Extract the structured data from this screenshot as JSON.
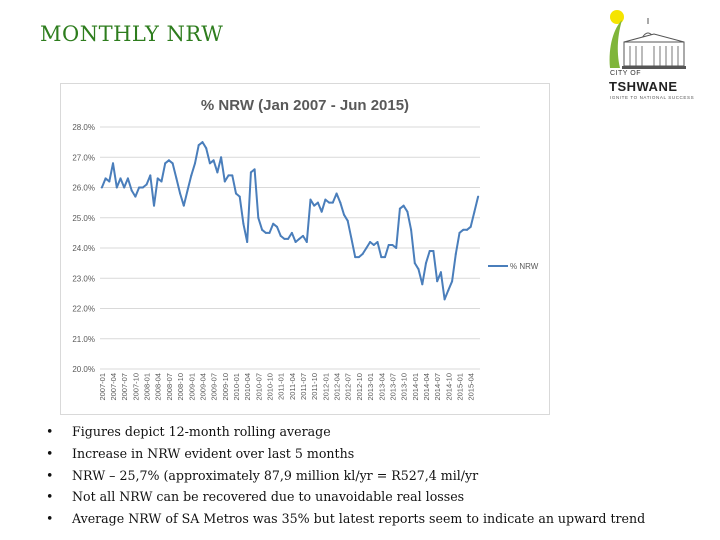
{
  "slide": {
    "title": "MONTHLY NRW"
  },
  "logo": {
    "city_of": "CITY OF",
    "name": "TSHWANE",
    "tagline": "IGNITE TO NATIONAL SUCCESS",
    "icon": "city-hall-icon"
  },
  "bullets": [
    "Figures depict 12-month rolling average",
    "Increase in NRW evident over last 5 months",
    "NRW – 25,7% (approximately 87,9 million kl/yr = R527,4 mil/yr",
    "Not all NRW can be recovered due to unavoidable real losses",
    "Average NRW of SA Metros was 35% but latest reports seem to indicate an upward trend"
  ],
  "chart_data": {
    "type": "line",
    "title": "% NRW (Jan 2007 - Jun 2015)",
    "xlabel": "",
    "ylabel": "",
    "ylim": [
      20,
      28
    ],
    "yticks": [
      "20.0%",
      "21.0%",
      "22.0%",
      "23.0%",
      "24.0%",
      "25.0%",
      "26.0%",
      "27.0%",
      "28.0%"
    ],
    "grid": true,
    "legend": "right",
    "colors": {
      "series": "#4a7ebb",
      "grid": "#d9d9d9",
      "axis_text": "#595959"
    },
    "x": [
      "2007-01",
      "2007-02",
      "2007-03",
      "2007-04",
      "2007-05",
      "2007-06",
      "2007-07",
      "2007-08",
      "2007-09",
      "2007-10",
      "2007-11",
      "2007-12",
      "2008-01",
      "2008-02",
      "2008-03",
      "2008-04",
      "2008-05",
      "2008-06",
      "2008-07",
      "2008-08",
      "2008-09",
      "2008-10",
      "2008-11",
      "2008-12",
      "2009-01",
      "2009-02",
      "2009-03",
      "2009-04",
      "2009-05",
      "2009-06",
      "2009-07",
      "2009-08",
      "2009-09",
      "2009-10",
      "2009-11",
      "2009-12",
      "2010-01",
      "2010-02",
      "2010-03",
      "2010-04",
      "2010-05",
      "2010-06",
      "2010-07",
      "2010-08",
      "2010-09",
      "2010-10",
      "2010-11",
      "2010-12",
      "2011-01",
      "2011-02",
      "2011-03",
      "2011-04",
      "2011-05",
      "2011-06",
      "2011-07",
      "2011-08",
      "2011-09",
      "2011-10",
      "2011-11",
      "2011-12",
      "2012-01",
      "2012-02",
      "2012-03",
      "2012-04",
      "2012-05",
      "2012-06",
      "2012-07",
      "2012-08",
      "2012-09",
      "2012-10",
      "2012-11",
      "2012-12",
      "2013-01",
      "2013-02",
      "2013-03",
      "2013-04",
      "2013-05",
      "2013-06",
      "2013-07",
      "2013-08",
      "2013-09",
      "2013-10",
      "2013-11",
      "2013-12",
      "2014-01",
      "2014-02",
      "2014-03",
      "2014-04",
      "2014-05",
      "2014-06",
      "2014-07",
      "2014-08",
      "2014-09",
      "2014-10",
      "2014-11",
      "2014-12",
      "2015-01",
      "2015-02",
      "2015-03",
      "2015-04",
      "2015-05",
      "2015-06"
    ],
    "tick_labels": [
      "2007-01",
      "2007-04",
      "2007-07",
      "2007-10",
      "2008-01",
      "2008-04",
      "2008-07",
      "2008-10",
      "2009-01",
      "2009-04",
      "2009-07",
      "2009-10",
      "2010-01",
      "2010-04",
      "2010-07",
      "2010-10",
      "2011-01",
      "2011-04",
      "2011-07",
      "2011-10",
      "2012-01",
      "2012-04",
      "2012-07",
      "2012-10",
      "2013-01",
      "2013-04",
      "2013-07",
      "2013-10",
      "2014-01",
      "2014-04",
      "2014-07",
      "2014-10",
      "2015-01",
      "2015-04"
    ],
    "series": [
      {
        "name": "% NRW",
        "values": [
          26.0,
          26.3,
          26.2,
          26.8,
          26.0,
          26.3,
          26.0,
          26.3,
          25.9,
          25.7,
          26.0,
          26.0,
          26.1,
          26.4,
          25.4,
          26.3,
          26.2,
          26.8,
          26.9,
          26.8,
          26.3,
          25.8,
          25.4,
          25.9,
          26.4,
          26.8,
          27.4,
          27.5,
          27.3,
          26.8,
          26.9,
          26.5,
          27.0,
          26.2,
          26.4,
          26.4,
          25.8,
          25.7,
          24.8,
          24.2,
          26.5,
          26.6,
          25.0,
          24.6,
          24.5,
          24.5,
          24.8,
          24.7,
          24.4,
          24.3,
          24.3,
          24.5,
          24.2,
          24.3,
          24.4,
          24.2,
          25.6,
          25.4,
          25.5,
          25.2,
          25.6,
          25.5,
          25.5,
          25.8,
          25.5,
          25.1,
          24.9,
          24.3,
          23.7,
          23.7,
          23.8,
          24.0,
          24.2,
          24.1,
          24.2,
          23.7,
          23.7,
          24.1,
          24.1,
          24.0,
          25.3,
          25.4,
          25.2,
          24.6,
          23.5,
          23.3,
          22.8,
          23.5,
          23.9,
          23.9,
          22.9,
          23.2,
          22.3,
          22.6,
          22.9,
          23.8,
          24.5,
          24.6,
          24.6,
          24.7,
          25.2,
          25.7
        ]
      }
    ]
  }
}
